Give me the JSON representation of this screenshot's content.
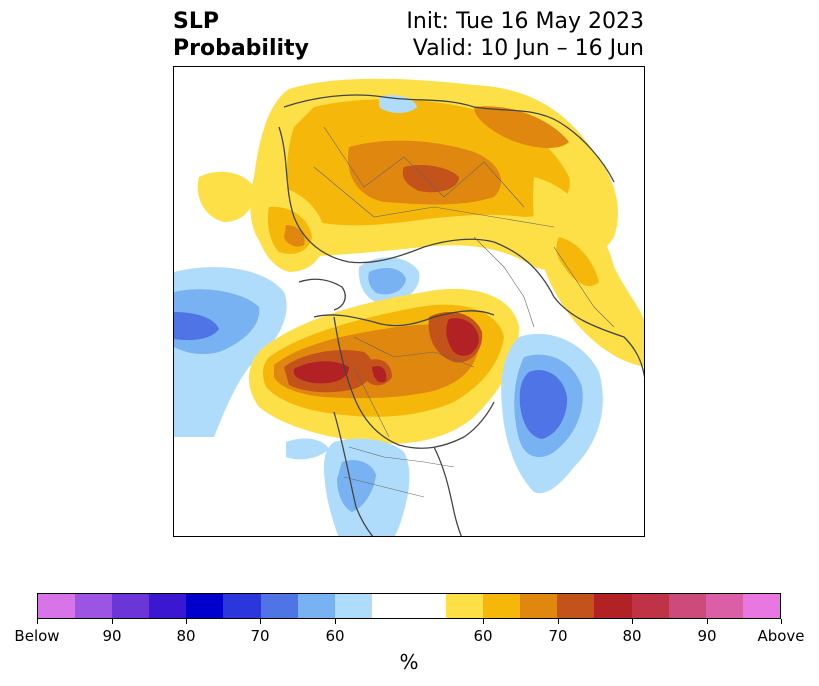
{
  "header": {
    "left_line1": "SLP",
    "left_line2": "Probability",
    "right_line1": "Init: Tue 16 May 2023",
    "right_line2": "Valid: 10 Jun – 16 Jun"
  },
  "map": {
    "projection": "north-polar-stereographic",
    "features": [
      {
        "name": "positive-anomaly-eurasia",
        "category": "above",
        "peak_level": "70"
      },
      {
        "name": "positive-anomaly-north-pacific",
        "category": "above",
        "peak_level": "80"
      },
      {
        "name": "positive-anomaly-canada",
        "category": "above",
        "peak_level": "80"
      },
      {
        "name": "negative-anomaly-north-atlantic",
        "category": "below",
        "peak_level": "70"
      },
      {
        "name": "negative-anomaly-western-pacific",
        "category": "below",
        "peak_level": "60"
      },
      {
        "name": "negative-anomaly-arctic",
        "category": "below",
        "peak_level": "60"
      },
      {
        "name": "negative-anomaly-southern-us",
        "category": "below",
        "peak_level": "60"
      }
    ]
  },
  "colorbar": {
    "colors": [
      "#d774e8",
      "#9c55e2",
      "#6b35d8",
      "#3c17d1",
      "#0000cc",
      "#2b36db",
      "#4f74e6",
      "#79b2f2",
      "#b0dcfc",
      "#ffffff",
      "#ffffff",
      "#fde047",
      "#f5b80a",
      "#e08710",
      "#c3521b",
      "#b22224",
      "#c03347",
      "#cd4b7a",
      "#db5fa6",
      "#e877e2"
    ],
    "ticks": [
      "Below",
      "90",
      "80",
      "70",
      "60",
      "60",
      "70",
      "80",
      "90",
      "Above"
    ],
    "label": "%"
  }
}
